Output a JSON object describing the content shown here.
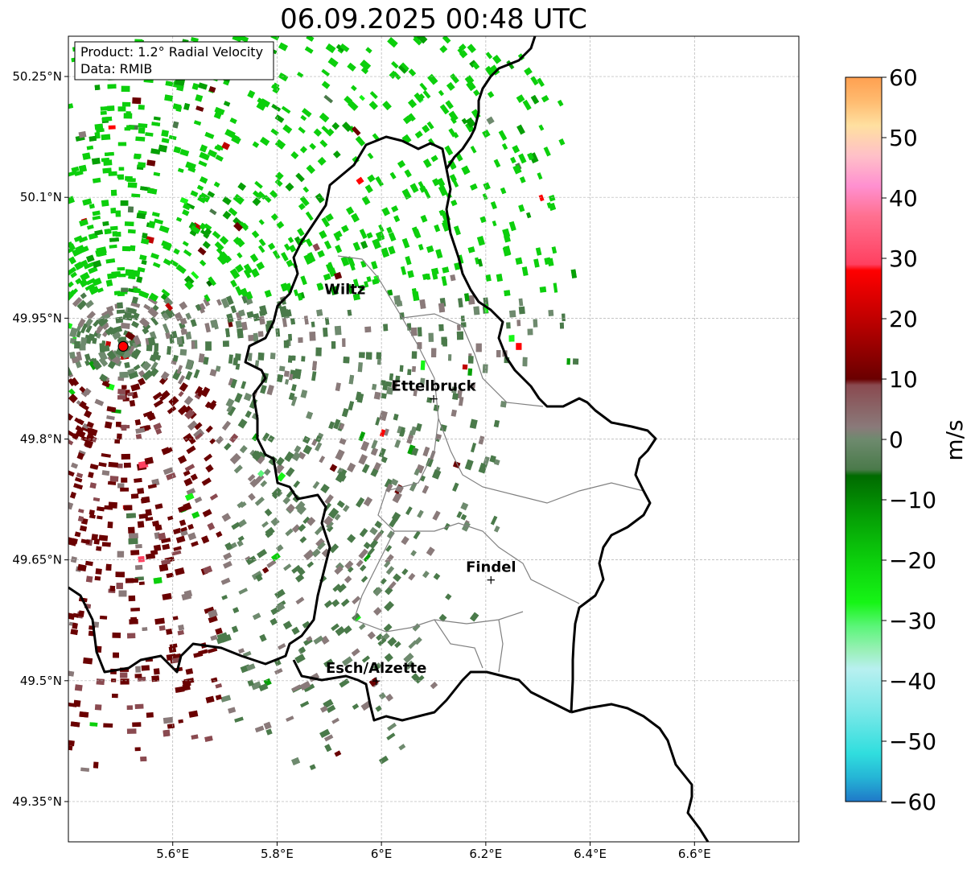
{
  "title": "06.09.2025 00:48 UTC",
  "info_box": {
    "product_line": "Product: 1.2° Radial Velocity",
    "data_line": "Data: RMIB"
  },
  "map_extent": {
    "lon": [
      5.4,
      6.8
    ],
    "lat": [
      49.3,
      50.3
    ]
  },
  "lon_ticks": [
    {
      "value": 5.6,
      "label": "5.6°E"
    },
    {
      "value": 5.8,
      "label": "5.8°E"
    },
    {
      "value": 6.0,
      "label": "6°E"
    },
    {
      "value": 6.2,
      "label": "6.2°E"
    },
    {
      "value": 6.4,
      "label": "6.4°E"
    },
    {
      "value": 6.6,
      "label": "6.6°E"
    }
  ],
  "lat_ticks": [
    {
      "value": 50.25,
      "label": "50.25°N"
    },
    {
      "value": 50.1,
      "label": "50.1°N"
    },
    {
      "value": 49.95,
      "label": "49.95°N"
    },
    {
      "value": 49.8,
      "label": "49.8°N"
    },
    {
      "value": 49.65,
      "label": "49.65°N"
    },
    {
      "value": 49.5,
      "label": "49.5°N"
    },
    {
      "value": 49.35,
      "label": "49.35°N"
    }
  ],
  "cities": [
    {
      "name": "Wiltz",
      "lon": 5.93,
      "lat": 49.97,
      "marker": false
    },
    {
      "name": "Ettelbruck",
      "lon": 6.1,
      "lat": 49.85,
      "marker": true
    },
    {
      "name": "Findel",
      "lon": 6.21,
      "lat": 49.625,
      "marker": true
    },
    {
      "name": "Esch/Alzette",
      "lon": 5.99,
      "lat": 49.5,
      "marker": true
    }
  ],
  "radar_site": {
    "lon": 5.505,
    "lat": 49.915,
    "color": "#ff0000"
  },
  "colorbar": {
    "label": "m/s",
    "min": -60,
    "max": 60,
    "ticks": [
      {
        "value": 60,
        "label": "60"
      },
      {
        "value": 50,
        "label": "50"
      },
      {
        "value": 40,
        "label": "40"
      },
      {
        "value": 30,
        "label": "30"
      },
      {
        "value": 20,
        "label": "20"
      },
      {
        "value": 10,
        "label": "10"
      },
      {
        "value": 0,
        "label": "0"
      },
      {
        "value": -10,
        "label": "−10"
      },
      {
        "value": -20,
        "label": "−20"
      },
      {
        "value": -30,
        "label": "−30"
      },
      {
        "value": -40,
        "label": "−40"
      },
      {
        "value": -50,
        "label": "−50"
      },
      {
        "value": -60,
        "label": "−60"
      }
    ],
    "stops": [
      {
        "value": -60,
        "color": "#1f78c8"
      },
      {
        "value": -56,
        "color": "#25b5d6"
      },
      {
        "value": -52,
        "color": "#30dede"
      },
      {
        "value": -45,
        "color": "#7ae8e8"
      },
      {
        "value": -38,
        "color": "#b8f0f0"
      },
      {
        "value": -35,
        "color": "#9af0b8"
      },
      {
        "value": -31,
        "color": "#5cf57a"
      },
      {
        "value": -27,
        "color": "#16f516"
      },
      {
        "value": -20,
        "color": "#0ccf0c"
      },
      {
        "value": -13,
        "color": "#05a005"
      },
      {
        "value": -6,
        "color": "#006a00"
      },
      {
        "value": -5,
        "color": "#4a7a4a"
      },
      {
        "value": 0,
        "color": "#6e8a6e"
      },
      {
        "value": 2,
        "color": "#8a7a7a"
      },
      {
        "value": 9,
        "color": "#8a4a50"
      },
      {
        "value": 10,
        "color": "#6a0000"
      },
      {
        "value": 20,
        "color": "#c00000"
      },
      {
        "value": 28,
        "color": "#ff0000"
      },
      {
        "value": 29,
        "color": "#ff4060"
      },
      {
        "value": 37,
        "color": "#ff7090"
      },
      {
        "value": 42,
        "color": "#ff90d0"
      },
      {
        "value": 47,
        "color": "#ffc0c8"
      },
      {
        "value": 52,
        "color": "#ffe0a0"
      },
      {
        "value": 56,
        "color": "#ffbb70"
      },
      {
        "value": 60,
        "color": "#ffa050"
      }
    ]
  }
}
